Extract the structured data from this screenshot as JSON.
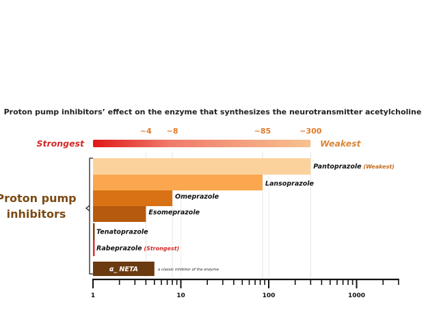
{
  "chart_data": {
    "type": "bar",
    "orientation": "horizontal",
    "title": "Proton pump inhibitors’ effect on the enzyme that synthesizes the neurotransmitter acetylcholine",
    "x_scale": "log",
    "xlim": [
      1,
      3000
    ],
    "x_ticks": [
      1,
      10,
      100,
      1000
    ],
    "x_tick_labels": [
      "1",
      "10",
      "100",
      "1000"
    ],
    "scale_legend": {
      "strongest_label": "Strongest",
      "weakest_label": "Weakest",
      "marker_values": [
        4,
        8,
        85,
        300
      ],
      "marker_labels": [
        "~4",
        "~8",
        "~85",
        "~300"
      ]
    },
    "group_label": [
      "Proton pump",
      "inhibitors"
    ],
    "bars": [
      {
        "name": "Pantoprazole",
        "note": "(Weakest)",
        "value": 300,
        "color": "#fbd29c"
      },
      {
        "name": "Lansoprazole",
        "note": "",
        "value": 85,
        "color": "#faa74f"
      },
      {
        "name": "Omeprazole",
        "note": "",
        "value": 8,
        "color": "#d97214"
      },
      {
        "name": "Esomeprazole",
        "note": "",
        "value": 4,
        "color": "#b55a0e"
      },
      {
        "name": "Tenatoprazole",
        "note": "",
        "value": 1.04,
        "color": "#7a4010"
      },
      {
        "name": "Rabeprazole",
        "note": "(Strongest)",
        "value": 1.04,
        "color": "#d43030"
      },
      {
        "name": "α_ NETA",
        "note": "a classic inhibitor of the enzyme",
        "value": 5,
        "color": "#6b3a10"
      }
    ],
    "colors": {
      "strongest": "#e01818",
      "weakest": "#f7c290",
      "note_weakest": "#c76a1c",
      "note_strongest": "#d42a2a",
      "group_label": "#7a4a12"
    }
  }
}
